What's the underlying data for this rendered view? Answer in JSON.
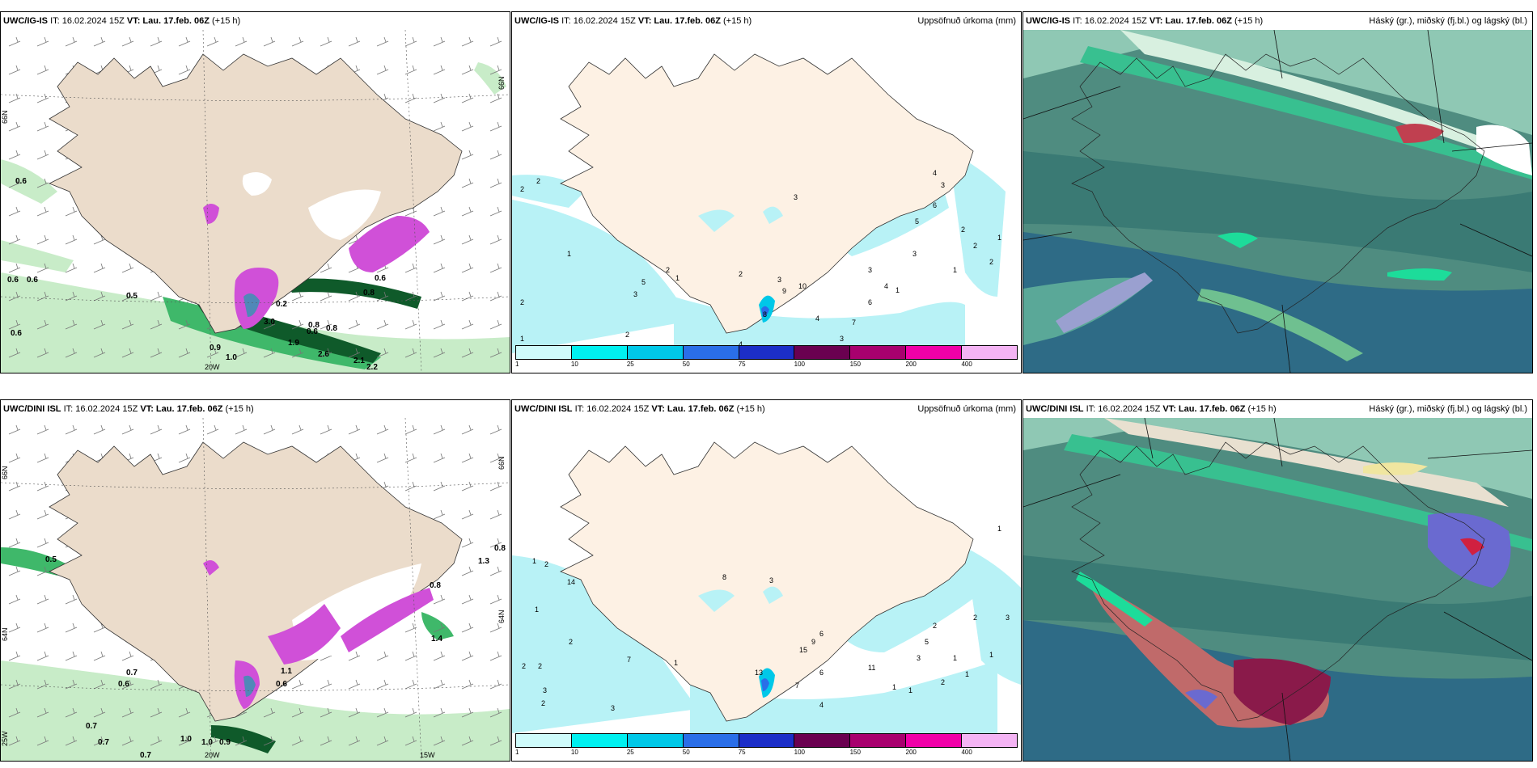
{
  "rows": [
    {
      "model": "UWC/IG-IS",
      "run": "IT: 16.02.2024 15Z",
      "vt_label": "VT: Lau. 17.feb. 06Z",
      "lead": "(+15 h)"
    },
    {
      "model": "UWC/DINI ISL",
      "run": "IT: 16.02.2024 15Z",
      "vt_label": "VT: Lau. 17.feb. 06Z",
      "lead": "(+15 h)"
    }
  ],
  "titles": {
    "precip": "Uppsöfnuð úrkoma (mm)",
    "clouds": "Háský (gr.), miðský (fj.bl.) og lágský (bl.)"
  },
  "colorbar": {
    "labels": [
      "1",
      "10",
      "25",
      "50",
      "75",
      "100",
      "150",
      "200",
      "400"
    ],
    "colors": [
      "#cffbfb",
      "#00f0f0",
      "#00c8e8",
      "#2a6ee8",
      "#1c2ec8",
      "#6a0050",
      "#a8006e",
      "#f000a8",
      "#f4b4f4"
    ]
  },
  "wind_panel_labels": {
    "lat_left": "66N",
    "lat_right": "66N",
    "lon_bottom_top": "20W",
    "lon_bottom_bottom": [
      "20W",
      "15W"
    ],
    "lat_left_bottom": "64N",
    "lat_right_bottom": "64N",
    "lon_left_bottom": "25W"
  },
  "precip_values_top": [
    "2",
    "2",
    "1",
    "2",
    "1",
    "2",
    "2",
    "5",
    "3",
    "1",
    "2",
    "3",
    "10",
    "9",
    "3",
    "6",
    "7",
    "8",
    "4",
    "3",
    "4",
    "4",
    "3",
    "2",
    "2",
    "1",
    "2",
    "3",
    "1",
    "1",
    "3",
    "4",
    "6",
    "5"
  ],
  "precip_values_bottom": [
    "1",
    "2",
    "14",
    "1",
    "2",
    "2",
    "3",
    "2",
    "2",
    "7",
    "3",
    "1",
    "8",
    "3",
    "13",
    "15",
    "6",
    "9",
    "7",
    "4",
    "11",
    "6",
    "3",
    "1",
    "2",
    "5",
    "1",
    "1",
    "1",
    "1",
    "2",
    "3",
    "1",
    "2"
  ],
  "wind_values_top": [
    "0.6",
    "0.6",
    "0.6",
    "0.6",
    "0.5",
    "0.2",
    "0.9",
    "1.0",
    "0.8",
    "0.8",
    "2.6",
    "2.1",
    "2.2",
    "0.6",
    "0.8",
    "0.6",
    "1.9",
    "3.0"
  ],
  "wind_values_bottom": [
    "0.5",
    "0.7",
    "0.6",
    "0.7",
    "0.7",
    "0.7",
    "1.0",
    "1.0",
    "0.9",
    "1.1",
    "0.6",
    "1.4",
    "0.8",
    "1.3",
    "0.8"
  ],
  "colors": {
    "land": "#ebdccb",
    "precip_land": "#fdf1e4",
    "cyan_light": "#b8f2f6",
    "green_light": "#c8ecc8",
    "green_mid": "#3fb86a",
    "green_dark": "#0f5a2a",
    "magenta": "#d050d8",
    "teal_dark": "#2f6f6a",
    "teal_mid": "#5a9f90",
    "blue_mid": "#2f6f98"
  }
}
